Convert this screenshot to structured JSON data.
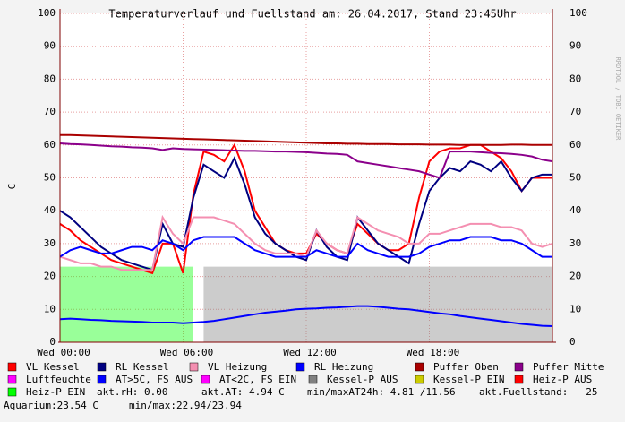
{
  "chart_data": {
    "type": "line",
    "title": "Temperaturverlauf und Fuellstand am: 26.04.2017, Stand 23:45Uhr",
    "ylabel": "C",
    "watermark": "RRDTOOL / TOBI OETIKER",
    "x": [
      0,
      0.5,
      1,
      1.5,
      2,
      2.5,
      3,
      3.5,
      4,
      4.5,
      5,
      5.5,
      6,
      6.5,
      7,
      7.5,
      8,
      8.5,
      9,
      9.5,
      10,
      10.5,
      11,
      11.5,
      12,
      12.5,
      13,
      13.5,
      14,
      14.5,
      15,
      15.5,
      16,
      16.5,
      17,
      17.5,
      18,
      18.5,
      19,
      19.5,
      20,
      20.5,
      21,
      21.5,
      22,
      22.5,
      23,
      23.5,
      24
    ],
    "xlim": [
      0,
      24
    ],
    "xticks": [
      {
        "value": 0,
        "label": "Wed 00:00"
      },
      {
        "value": 6,
        "label": "Wed 06:00"
      },
      {
        "value": 12,
        "label": "Wed 12:00"
      },
      {
        "value": 18,
        "label": "Wed 18:00"
      }
    ],
    "ylim": [
      0,
      100
    ],
    "yticks": [
      0,
      10,
      20,
      30,
      40,
      50,
      60,
      70,
      80,
      90,
      100
    ],
    "grid": true,
    "series": [
      {
        "name": "VL Kessel",
        "color": "#ff0000",
        "values": [
          36,
          34,
          31,
          29,
          27,
          25,
          24,
          23,
          22,
          21,
          30,
          30,
          21,
          45,
          58,
          57,
          55,
          60,
          52,
          40,
          35,
          30,
          28,
          27,
          27,
          33,
          30,
          28,
          27,
          36,
          33,
          30,
          28,
          28,
          30,
          44,
          55,
          58,
          59,
          59,
          60,
          60,
          58,
          56,
          52,
          46,
          50,
          50,
          50
        ]
      },
      {
        "name": "RL Kessel",
        "color": "#000080",
        "values": [
          40,
          38,
          35,
          32,
          29,
          27,
          25,
          24,
          23,
          22,
          36,
          30,
          29,
          44,
          54,
          52,
          50,
          56,
          48,
          38,
          33,
          30,
          28,
          26,
          25,
          34,
          29,
          26,
          25,
          38,
          34,
          30,
          28,
          26,
          24,
          36,
          46,
          50,
          53,
          52,
          55,
          54,
          52,
          55,
          50,
          46,
          50,
          51,
          51
        ]
      },
      {
        "name": "VL Heizung",
        "color": "#f48fb1",
        "values": [
          26,
          25,
          24,
          24,
          23,
          23,
          22,
          22,
          22,
          22,
          38,
          33,
          30,
          38,
          38,
          38,
          37,
          36,
          33,
          30,
          28,
          27,
          27,
          27,
          26,
          34,
          30,
          28,
          27,
          38,
          36,
          34,
          33,
          32,
          30,
          30,
          33,
          33,
          34,
          35,
          36,
          36,
          36,
          35,
          35,
          34,
          30,
          29,
          30
        ]
      },
      {
        "name": "RL Heizung",
        "color": "#0000ff",
        "values": [
          26,
          28,
          29,
          28,
          27,
          27,
          28,
          29,
          29,
          28,
          31,
          30,
          28,
          31,
          32,
          32,
          32,
          32,
          30,
          28,
          27,
          26,
          26,
          26,
          26,
          28,
          27,
          26,
          26,
          30,
          28,
          27,
          26,
          26,
          26,
          27,
          29,
          30,
          31,
          31,
          32,
          32,
          32,
          31,
          31,
          30,
          28,
          26,
          26
        ]
      },
      {
        "name": "Puffer Oben",
        "color": "#aa0000",
        "values": [
          63,
          63,
          62.9,
          62.8,
          62.7,
          62.6,
          62.5,
          62.4,
          62.3,
          62.2,
          62.1,
          62,
          61.9,
          61.8,
          61.7,
          61.6,
          61.5,
          61.4,
          61.3,
          61.2,
          61.1,
          61,
          60.9,
          60.8,
          60.7,
          60.6,
          60.5,
          60.5,
          60.4,
          60.4,
          60.3,
          60.3,
          60.3,
          60.2,
          60.2,
          60.2,
          60.1,
          60.1,
          60.1,
          60,
          60,
          60,
          60,
          60,
          60.1,
          60.1,
          60,
          60,
          60
        ]
      },
      {
        "name": "Puffer Mitte",
        "color": "#8b008b",
        "values": [
          60.5,
          60.3,
          60.2,
          60,
          59.8,
          59.6,
          59.5,
          59.3,
          59.2,
          59,
          58.5,
          59,
          58.8,
          58.7,
          58.6,
          58.5,
          58.4,
          58.3,
          58.2,
          58.2,
          58.1,
          58,
          58,
          57.9,
          57.8,
          57.6,
          57.4,
          57.3,
          57,
          55,
          54.5,
          54,
          53.5,
          53,
          52.5,
          52,
          51,
          50,
          58,
          58,
          58,
          57.8,
          57.6,
          57.5,
          57.3,
          57,
          56.5,
          55.5,
          55
        ]
      },
      {
        "name": "Luftfeuchte",
        "color": "#ff00ff"
      },
      {
        "name": "AT>5C, FS AUS",
        "color": "#0000ff",
        "values": [
          7,
          7.2,
          7,
          6.8,
          6.7,
          6.5,
          6.4,
          6.3,
          6.2,
          6,
          6,
          6,
          5.8,
          6,
          6.2,
          6.5,
          7,
          7.5,
          8,
          8.5,
          9,
          9.3,
          9.6,
          10,
          10.2,
          10.3,
          10.5,
          10.6,
          10.8,
          11,
          11,
          10.8,
          10.5,
          10.2,
          10,
          9.6,
          9.2,
          8.8,
          8.5,
          8,
          7.6,
          7.2,
          6.8,
          6.4,
          6,
          5.6,
          5.3,
          5,
          4.9
        ]
      },
      {
        "name": "AT<2C, FS EIN",
        "color": "#ff00ff"
      },
      {
        "name": "Kessel-P AUS",
        "color": "#808080",
        "area": true,
        "values": [
          null,
          null,
          null,
          null,
          null,
          null,
          null,
          null,
          null,
          null,
          null,
          null,
          null,
          null,
          23,
          23,
          23,
          23,
          23,
          23,
          23,
          23,
          23,
          23,
          23,
          23,
          23,
          23,
          23,
          23,
          23,
          23,
          23,
          23,
          23,
          23,
          23,
          23,
          23,
          23,
          23,
          23,
          23,
          23,
          23,
          23,
          23,
          23,
          23
        ]
      },
      {
        "name": "Kessel-P EIN",
        "color": "#cccc00"
      },
      {
        "name": "Heiz-P AUS",
        "color": "#ff0000"
      },
      {
        "name": "Heiz-P EIN",
        "color": "#00ff00",
        "area": true,
        "values": [
          23,
          23,
          23,
          23,
          23,
          23,
          23,
          23,
          23,
          23,
          23,
          23,
          23,
          23,
          null,
          null,
          null,
          null,
          null,
          null,
          null,
          null,
          null,
          null,
          null,
          null,
          null,
          null,
          null,
          null,
          null,
          null,
          null,
          null,
          null,
          null,
          null,
          null,
          null,
          null,
          null,
          null,
          null,
          null,
          null,
          null,
          null,
          null,
          null
        ]
      }
    ],
    "notes": [
      "akt.rH: 0.00",
      "akt.AT: 4.94 C",
      "min/maxAT24h: 4.81 /11.56",
      "akt.Fuellstand:   25",
      "Aquarium:23.54 C",
      "min/max:22.94/23.94"
    ]
  }
}
